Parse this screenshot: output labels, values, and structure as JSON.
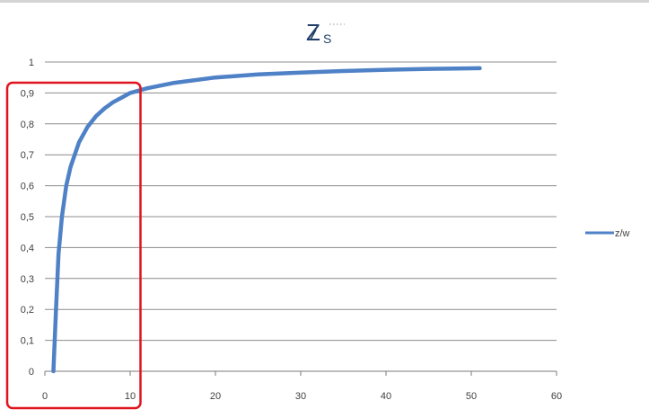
{
  "colors": {
    "series": "#4f81c7",
    "gridline": "#8c8c8c",
    "highlight_box": "#e0141e",
    "title": "#1f3f6a",
    "tick_text": "#404040"
  },
  "chart_data": {
    "type": "line",
    "title_main": "Z",
    "title_sub": "S",
    "xlabel": "",
    "ylabel": "",
    "xlim": [
      0,
      60
    ],
    "ylim": [
      0,
      1
    ],
    "x_ticks": [
      "0",
      "10",
      "20",
      "30",
      "40",
      "50",
      "60"
    ],
    "y_ticks": [
      "0",
      "0,1",
      "0,2",
      "0,3",
      "0,4",
      "0,5",
      "0,6",
      "0,7",
      "0,8",
      "0,9",
      "1"
    ],
    "grid": true,
    "legend_position": "right",
    "series": [
      {
        "name": "z/w",
        "color": "#4f81c7",
        "points": [
          [
            1,
            0
          ],
          [
            1.3,
            0.2
          ],
          [
            1.6,
            0.38
          ],
          [
            2,
            0.5
          ],
          [
            2.5,
            0.6
          ],
          [
            3,
            0.66
          ],
          [
            4,
            0.74
          ],
          [
            5,
            0.79
          ],
          [
            6,
            0.825
          ],
          [
            7,
            0.85
          ],
          [
            8,
            0.87
          ],
          [
            9,
            0.885
          ],
          [
            10,
            0.9
          ],
          [
            12,
            0.915
          ],
          [
            15,
            0.932
          ],
          [
            20,
            0.95
          ],
          [
            25,
            0.96
          ],
          [
            30,
            0.966
          ],
          [
            35,
            0.971
          ],
          [
            40,
            0.975
          ],
          [
            45,
            0.978
          ],
          [
            51,
            0.98
          ]
        ]
      }
    ],
    "highlight_region": {
      "x": [
        0,
        11
      ],
      "y": [
        0,
        1
      ],
      "note": "red rounded rectangle around low-x portion"
    }
  }
}
